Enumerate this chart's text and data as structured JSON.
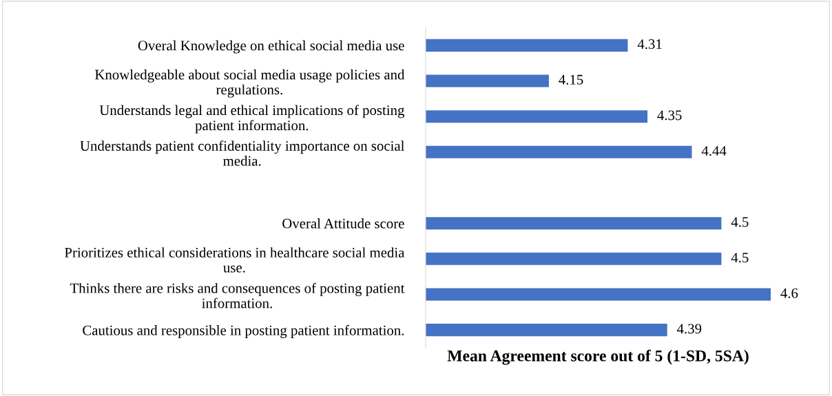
{
  "chart_data": {
    "type": "bar",
    "orientation": "horizontal",
    "xlabel": "Mean Agreement score out of 5 (1-SD, 5SA)",
    "categories": [
      "Overal Knowledge on ethical social media use",
      "Knowledgeable about social media usage policies and\nregulations.",
      "Understands legal and ethical implications of posting\npatient information.",
      "Understands patient confidentiality importance on social\nmedia.",
      null,
      "Overal Attitude score",
      "Prioritizes ethical considerations in healthcare social media\nuse.",
      "Thinks there are risks and consequences of posting patient\ninformation.",
      "Cautious and responsible in posting patient information."
    ],
    "values": [
      4.31,
      4.15,
      4.35,
      4.44,
      null,
      4.5,
      4.5,
      4.6,
      4.39
    ],
    "color": "#4472c4",
    "xlim": [
      3.9,
      4.6
    ],
    "data_labels": true,
    "tick_labels": "y",
    "grid": false,
    "legend": false
  }
}
